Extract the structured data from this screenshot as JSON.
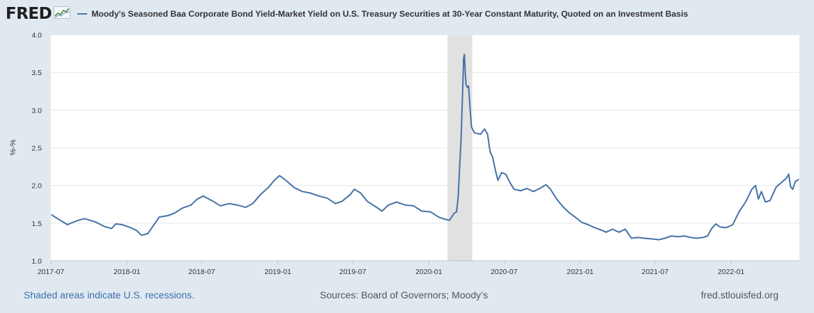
{
  "header": {
    "logo_text": "FRED",
    "title": "Moody's Seasoned Baa Corporate Bond Yield-Market Yield on U.S. Treasury Securities at 30-Year Constant Maturity, Quoted on an Investment Basis"
  },
  "footer": {
    "recession_note": "Shaded areas indicate U.S. recessions.",
    "sources": "Sources: Board of Governors; Moody’s",
    "url": "fred.stlouisfed.org"
  },
  "colors": {
    "background": "#e1e9f0",
    "plot_background": "#ffffff",
    "series": "#4572a7",
    "recession_shade": "#e1e1e1",
    "link": "#3b6fae"
  },
  "chart_data": {
    "type": "line",
    "title": "Moody's Seasoned Baa Corporate Bond Yield-Market Yield on U.S. Treasury Securities at 30-Year Constant Maturity, Quoted on an Investment Basis",
    "xlabel": "",
    "ylabel": "%-%",
    "ylim": [
      1.0,
      4.0
    ],
    "xlim": [
      "2017-07-01",
      "2022-06-15"
    ],
    "y_ticks": [
      "1.0",
      "1.5",
      "2.0",
      "2.5",
      "3.0",
      "3.5",
      "4.0"
    ],
    "x_ticks": [
      "2017-07",
      "2018-01",
      "2018-07",
      "2019-01",
      "2019-07",
      "2020-01",
      "2020-07",
      "2021-01",
      "2021-07",
      "2022-01"
    ],
    "grid": "horizontal",
    "recessions": [
      {
        "start": "2020-02-15",
        "end": "2020-04-15"
      }
    ],
    "series": [
      {
        "name": "Moody's Seasoned Baa Corporate Bond Yield-Market Yield on U.S. Treasury Securities at 30-Year Constant Maturity, Quoted on an Investment Basis",
        "points": [
          [
            "2017-07-03",
            1.61
          ],
          [
            "2017-07-20",
            1.55
          ],
          [
            "2017-08-10",
            1.48
          ],
          [
            "2017-09-01",
            1.53
          ],
          [
            "2017-09-20",
            1.56
          ],
          [
            "2017-10-15",
            1.52
          ],
          [
            "2017-11-10",
            1.45
          ],
          [
            "2017-11-25",
            1.43
          ],
          [
            "2017-12-05",
            1.49
          ],
          [
            "2017-12-20",
            1.48
          ],
          [
            "2018-01-10",
            1.44
          ],
          [
            "2018-01-25",
            1.4
          ],
          [
            "2018-02-05",
            1.34
          ],
          [
            "2018-02-20",
            1.36
          ],
          [
            "2018-03-05",
            1.46
          ],
          [
            "2018-03-20",
            1.58
          ],
          [
            "2018-04-10",
            1.6
          ],
          [
            "2018-04-25",
            1.63
          ],
          [
            "2018-05-15",
            1.7
          ],
          [
            "2018-06-05",
            1.74
          ],
          [
            "2018-06-20",
            1.82
          ],
          [
            "2018-07-05",
            1.86
          ],
          [
            "2018-07-25",
            1.8
          ],
          [
            "2018-08-15",
            1.73
          ],
          [
            "2018-09-05",
            1.76
          ],
          [
            "2018-09-25",
            1.74
          ],
          [
            "2018-10-15",
            1.71
          ],
          [
            "2018-11-01",
            1.76
          ],
          [
            "2018-11-20",
            1.88
          ],
          [
            "2018-12-10",
            1.98
          ],
          [
            "2018-12-25",
            2.08
          ],
          [
            "2019-01-05",
            2.13
          ],
          [
            "2019-01-20",
            2.07
          ],
          [
            "2019-02-10",
            1.97
          ],
          [
            "2019-03-01",
            1.92
          ],
          [
            "2019-03-20",
            1.9
          ],
          [
            "2019-04-10",
            1.86
          ],
          [
            "2019-05-01",
            1.83
          ],
          [
            "2019-05-20",
            1.76
          ],
          [
            "2019-06-05",
            1.79
          ],
          [
            "2019-06-25",
            1.88
          ],
          [
            "2019-07-05",
            1.95
          ],
          [
            "2019-07-20",
            1.9
          ],
          [
            "2019-08-05",
            1.79
          ],
          [
            "2019-08-25",
            1.72
          ],
          [
            "2019-09-10",
            1.66
          ],
          [
            "2019-09-25",
            1.74
          ],
          [
            "2019-10-15",
            1.78
          ],
          [
            "2019-11-05",
            1.74
          ],
          [
            "2019-11-25",
            1.73
          ],
          [
            "2019-12-15",
            1.66
          ],
          [
            "2020-01-05",
            1.65
          ],
          [
            "2020-01-25",
            1.58
          ],
          [
            "2020-02-10",
            1.55
          ],
          [
            "2020-02-20",
            1.54
          ],
          [
            "2020-03-02",
            1.63
          ],
          [
            "2020-03-08",
            1.65
          ],
          [
            "2020-03-12",
            1.85
          ],
          [
            "2020-03-16",
            2.3
          ],
          [
            "2020-03-19",
            2.62
          ],
          [
            "2020-03-23",
            3.3
          ],
          [
            "2020-03-25",
            3.68
          ],
          [
            "2020-03-27",
            3.74
          ],
          [
            "2020-03-29",
            3.5
          ],
          [
            "2020-03-31",
            3.34
          ],
          [
            "2020-04-03",
            3.3
          ],
          [
            "2020-04-06",
            3.32
          ],
          [
            "2020-04-10",
            3.0
          ],
          [
            "2020-04-13",
            2.78
          ],
          [
            "2020-04-20",
            2.7
          ],
          [
            "2020-05-05",
            2.68
          ],
          [
            "2020-05-15",
            2.75
          ],
          [
            "2020-05-22",
            2.68
          ],
          [
            "2020-05-28",
            2.45
          ],
          [
            "2020-06-03",
            2.38
          ],
          [
            "2020-06-10",
            2.2
          ],
          [
            "2020-06-16",
            2.07
          ],
          [
            "2020-06-25",
            2.17
          ],
          [
            "2020-07-05",
            2.15
          ],
          [
            "2020-07-15",
            2.04
          ],
          [
            "2020-07-25",
            1.95
          ],
          [
            "2020-08-10",
            1.93
          ],
          [
            "2020-08-25",
            1.96
          ],
          [
            "2020-09-10",
            1.92
          ],
          [
            "2020-09-25",
            1.96
          ],
          [
            "2020-10-10",
            2.01
          ],
          [
            "2020-10-20",
            1.96
          ],
          [
            "2020-11-05",
            1.82
          ],
          [
            "2020-11-20",
            1.72
          ],
          [
            "2020-12-05",
            1.64
          ],
          [
            "2020-12-20",
            1.58
          ],
          [
            "2021-01-05",
            1.51
          ],
          [
            "2021-01-20",
            1.48
          ],
          [
            "2021-02-05",
            1.44
          ],
          [
            "2021-02-20",
            1.41
          ],
          [
            "2021-03-05",
            1.38
          ],
          [
            "2021-03-20",
            1.42
          ],
          [
            "2021-04-05",
            1.38
          ],
          [
            "2021-04-20",
            1.42
          ],
          [
            "2021-05-05",
            1.3
          ],
          [
            "2021-05-20",
            1.31
          ],
          [
            "2021-06-05",
            1.3
          ],
          [
            "2021-06-25",
            1.29
          ],
          [
            "2021-07-10",
            1.28
          ],
          [
            "2021-07-25",
            1.3
          ],
          [
            "2021-08-10",
            1.33
          ],
          [
            "2021-08-25",
            1.32
          ],
          [
            "2021-09-10",
            1.33
          ],
          [
            "2021-09-25",
            1.31
          ],
          [
            "2021-10-10",
            1.3
          ],
          [
            "2021-10-25",
            1.31
          ],
          [
            "2021-11-05",
            1.33
          ],
          [
            "2021-11-15",
            1.43
          ],
          [
            "2021-11-25",
            1.49
          ],
          [
            "2021-12-05",
            1.45
          ],
          [
            "2021-12-20",
            1.44
          ],
          [
            "2022-01-05",
            1.48
          ],
          [
            "2022-01-20",
            1.65
          ],
          [
            "2022-02-05",
            1.78
          ],
          [
            "2022-02-20",
            1.95
          ],
          [
            "2022-03-01",
            2.0
          ],
          [
            "2022-03-08",
            1.82
          ],
          [
            "2022-03-15",
            1.92
          ],
          [
            "2022-03-25",
            1.78
          ],
          [
            "2022-04-05",
            1.8
          ],
          [
            "2022-04-20",
            1.98
          ],
          [
            "2022-05-05",
            2.05
          ],
          [
            "2022-05-15",
            2.1
          ],
          [
            "2022-05-20",
            2.15
          ],
          [
            "2022-05-25",
            1.98
          ],
          [
            "2022-05-30",
            1.95
          ],
          [
            "2022-06-05",
            2.05
          ],
          [
            "2022-06-13",
            2.08
          ]
        ]
      }
    ]
  }
}
